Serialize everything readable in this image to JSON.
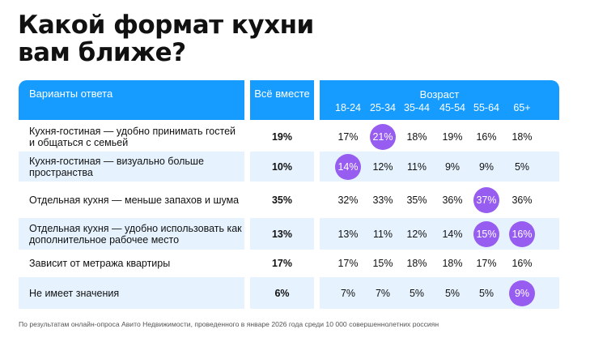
{
  "title_lines": [
    "Какой формат кухни",
    "вам ближе?"
  ],
  "chart_data": {
    "type": "table",
    "title": "Какой формат кухни вам ближе?",
    "header": {
      "answer_col": "Варианты ответа",
      "total_col": "Всё вместе",
      "age_group": "Возраст"
    },
    "age_categories": [
      "18-24",
      "25-34",
      "35-44",
      "45-54",
      "55-64",
      "65+"
    ],
    "rows": [
      {
        "label": "Кухня-гостиная — удобно принимать гостей и общаться с семьей",
        "total": "19%",
        "ages": [
          "17%",
          "21%",
          "18%",
          "19%",
          "16%",
          "18%"
        ],
        "highlight": [
          1
        ]
      },
      {
        "label": "Кухня-гостиная — визуально больше пространства",
        "total": "10%",
        "ages": [
          "14%",
          "12%",
          "11%",
          "9%",
          "9%",
          "5%"
        ],
        "highlight": [
          0
        ]
      },
      {
        "label": "Отдельная кухня — меньше запахов и шума",
        "total": "35%",
        "ages": [
          "32%",
          "33%",
          "35%",
          "36%",
          "37%",
          "36%"
        ],
        "highlight": [
          4
        ]
      },
      {
        "label": "Отдельная кухня — удобно использовать как дополнительное рабочее место",
        "total": "13%",
        "ages": [
          "13%",
          "11%",
          "12%",
          "14%",
          "15%",
          "16%"
        ],
        "highlight": [
          4,
          5
        ]
      },
      {
        "label": "Зависит от метража квартиры",
        "total": "17%",
        "ages": [
          "17%",
          "15%",
          "18%",
          "18%",
          "17%",
          "16%"
        ],
        "highlight": []
      },
      {
        "label": "Не имеет значения",
        "total": "6%",
        "ages": [
          "7%",
          "7%",
          "5%",
          "5%",
          "5%",
          "9%"
        ],
        "highlight": [
          5
        ]
      }
    ],
    "colors": {
      "header": "#169bff",
      "row_alt": "#e6f3ff",
      "highlight": "#975cf0"
    }
  },
  "footer": "По результатам онлайн-опроса Авито Недвижимости, проведенного в январе 2026 года среди 10 000 совершеннолетних россиян"
}
